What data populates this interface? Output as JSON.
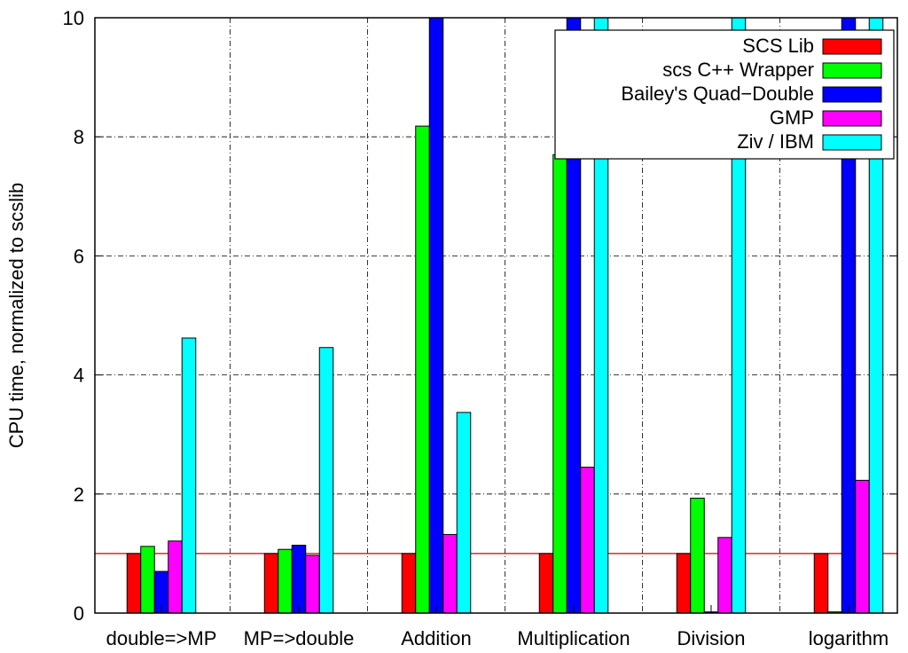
{
  "chart_data": {
    "type": "bar",
    "title": "",
    "xlabel": "",
    "ylabel": "CPU time, normalized to scslib",
    "ylim": [
      0,
      10
    ],
    "yticks": [
      0,
      2,
      4,
      6,
      8,
      10
    ],
    "categories": [
      "double=>MP",
      "MP=>double",
      "Addition",
      "Multiplication",
      "Division",
      "logarithm"
    ],
    "grid": true,
    "legend_position": "top-right",
    "reference_line": {
      "y": 1,
      "color": "#d00000"
    },
    "series": [
      {
        "name": "SCS Lib",
        "color": "#ff0000",
        "values": [
          1,
          1,
          1,
          1,
          1,
          1
        ]
      },
      {
        "name": "scs C++ Wrapper",
        "color": "#00ff00",
        "values": [
          1.12,
          1.07,
          8.18,
          7.7,
          1.93,
          0.02
        ]
      },
      {
        "name": "Bailey's Quad−Double",
        "color": "#0000ff",
        "values": [
          0.7,
          1.14,
          10.5,
          10.5,
          0.02,
          10.5
        ]
      },
      {
        "name": "GMP",
        "color": "#ff00ff",
        "values": [
          1.21,
          0.97,
          1.32,
          2.45,
          1.27,
          2.23
        ]
      },
      {
        "name": "Ziv / IBM",
        "color": "#00ffff",
        "values": [
          4.62,
          4.46,
          3.37,
          10.5,
          10.5,
          10.5
        ]
      }
    ]
  }
}
